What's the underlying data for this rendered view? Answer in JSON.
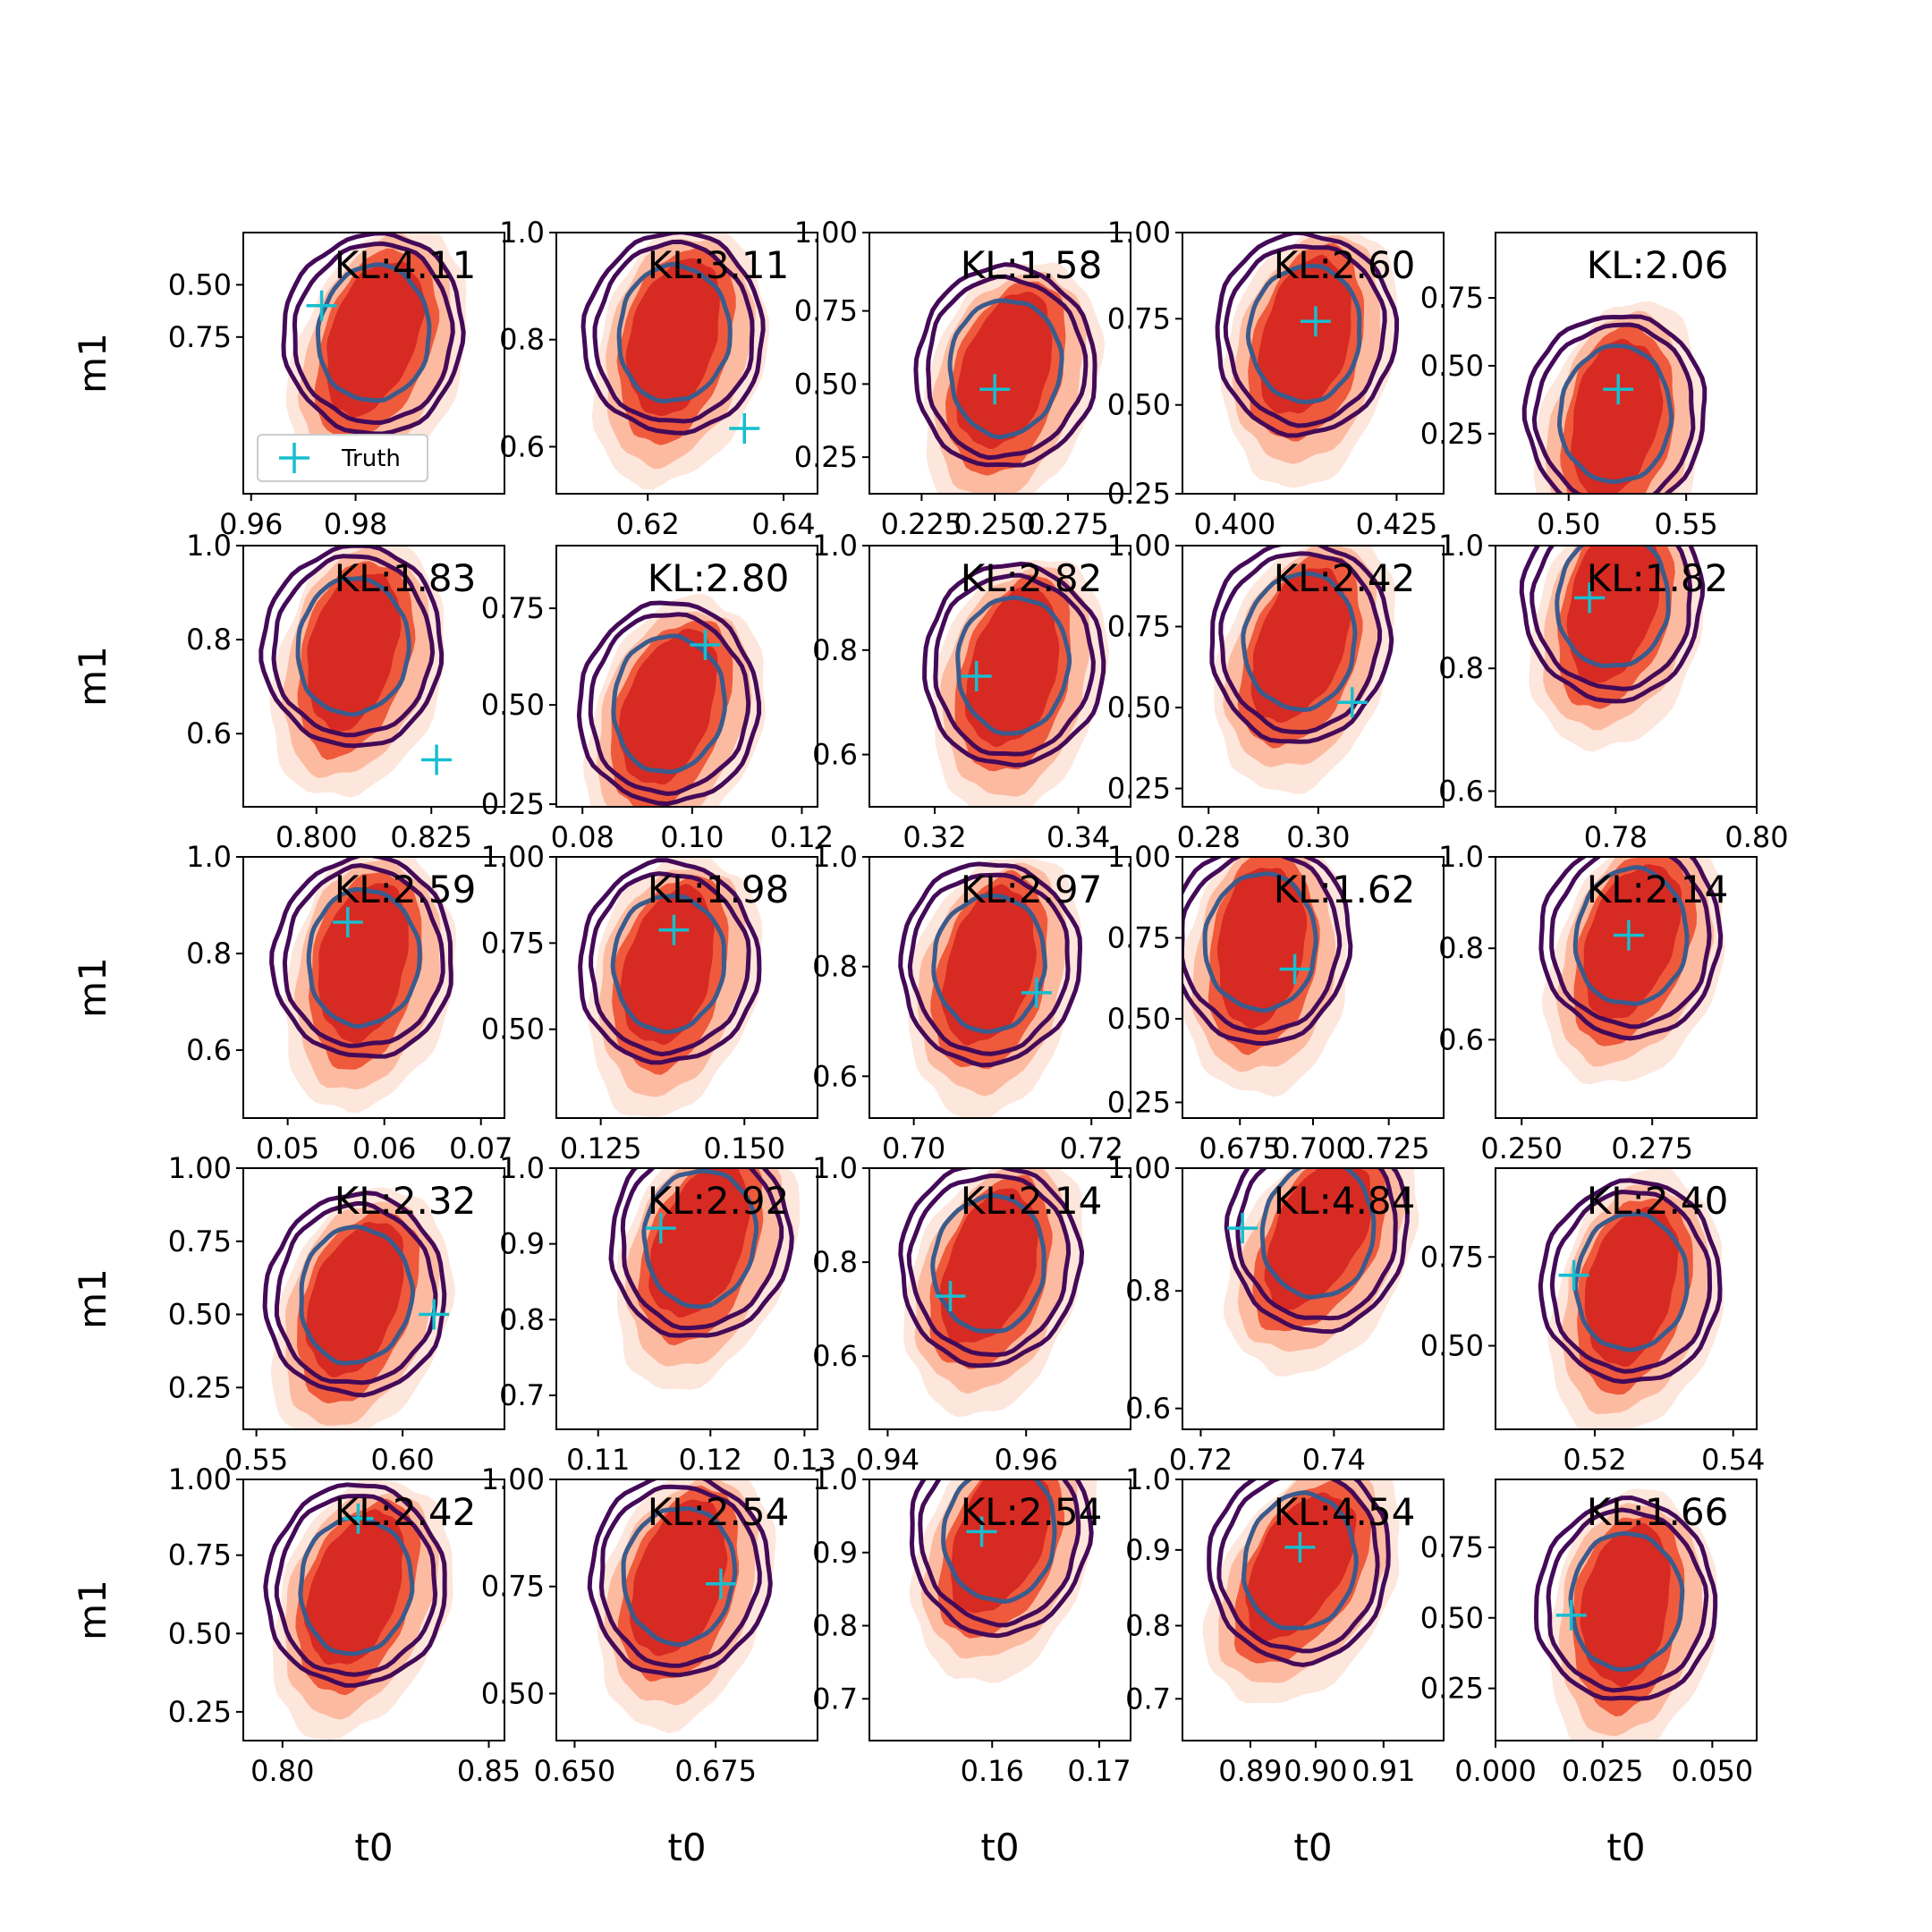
{
  "chart_data": {
    "type": "contour-grid",
    "rows": 5,
    "cols": 5,
    "xlabel": "t0",
    "ylabel": "m1",
    "legend": {
      "label": "Truth",
      "marker": "+",
      "placement": "lower-left of first panel"
    },
    "colors": {
      "fill_outer": "#fde6dc",
      "fill_mid": "#fcbba1",
      "fill_inner1": "#ef5a3c",
      "fill_inner2": "#d72a22",
      "contour_outer": "#440a58",
      "contour_inner": "#3b5b8c",
      "truth": "#17becf"
    },
    "panels": [
      {
        "kl": "KL:4.11",
        "xticks": [
          "0.96",
          "0.98"
        ],
        "yticks": [
          "0.75",
          "0.50"
        ]
      },
      {
        "kl": "KL:3.11",
        "xticks": [
          "0.62",
          "0.64"
        ],
        "yticks": [
          "1.0",
          "0.8",
          "0.6"
        ]
      },
      {
        "kl": "KL:1.58",
        "xticks": [
          "0.225",
          "0.250",
          "0.275"
        ],
        "yticks": [
          "1.00",
          "0.75",
          "0.50",
          "0.25"
        ]
      },
      {
        "kl": "KL:2.60",
        "xticks": [
          "0.400",
          "0.425"
        ],
        "yticks": [
          "1.00",
          "0.75",
          "0.50",
          "0.25"
        ]
      },
      {
        "kl": "KL:2.06",
        "xticks": [
          "0.50",
          "0.55"
        ],
        "yticks": [
          "0.75",
          "0.50",
          "0.25"
        ]
      },
      {
        "kl": "KL:1.83",
        "xticks": [
          "0.800",
          "0.825"
        ],
        "yticks": [
          "1.0",
          "0.8",
          "0.6"
        ]
      },
      {
        "kl": "KL:2.80",
        "xticks": [
          "0.08",
          "0.10",
          "0.12"
        ],
        "yticks": [
          "0.75",
          "0.50",
          "0.25"
        ]
      },
      {
        "kl": "KL:2.82",
        "xticks": [
          "0.32",
          "0.34"
        ],
        "yticks": [
          "1.0",
          "0.8",
          "0.6"
        ]
      },
      {
        "kl": "KL:2.42",
        "xticks": [
          "0.28",
          "0.30"
        ],
        "yticks": [
          "1.00",
          "0.75",
          "0.50",
          "0.25"
        ]
      },
      {
        "kl": "KL:1.82",
        "xticks": [
          "0.78",
          "0.80"
        ],
        "yticks": [
          "1.0",
          "0.8",
          "0.6"
        ]
      },
      {
        "kl": "KL:2.59",
        "xticks": [
          "0.05",
          "0.06",
          "0.07"
        ],
        "yticks": [
          "1.0",
          "0.8",
          "0.6"
        ]
      },
      {
        "kl": "KL:1.98",
        "xticks": [
          "0.125",
          "0.150"
        ],
        "yticks": [
          "1.00",
          "0.75",
          "0.50"
        ]
      },
      {
        "kl": "KL:2.97",
        "xticks": [
          "0.70",
          "0.72"
        ],
        "yticks": [
          "1.0",
          "0.8",
          "0.6"
        ]
      },
      {
        "kl": "KL:1.62",
        "xticks": [
          "0.675",
          "0.700",
          "0.725"
        ],
        "yticks": [
          "1.00",
          "0.75",
          "0.50",
          "0.25"
        ]
      },
      {
        "kl": "KL:2.14",
        "xticks": [
          "0.250",
          "0.275"
        ],
        "yticks": [
          "1.0",
          "0.8",
          "0.6"
        ]
      },
      {
        "kl": "KL:2.32",
        "xticks": [
          "0.55",
          "0.60"
        ],
        "yticks": [
          "1.00",
          "0.75",
          "0.50",
          "0.25"
        ]
      },
      {
        "kl": "KL:2.92",
        "xticks": [
          "0.11",
          "0.12",
          "0.13"
        ],
        "yticks": [
          "1.0",
          "0.9",
          "0.8",
          "0.7"
        ]
      },
      {
        "kl": "KL:2.14",
        "xticks": [
          "0.94",
          "0.96"
        ],
        "yticks": [
          "1.0",
          "0.8",
          "0.6"
        ]
      },
      {
        "kl": "KL:4.84",
        "xticks": [
          "0.72",
          "0.74"
        ],
        "yticks": [
          "1.00",
          "0.8",
          "0.6"
        ]
      },
      {
        "kl": "KL:2.40",
        "xticks": [
          "0.52",
          "0.54"
        ],
        "yticks": [
          "0.75",
          "0.50"
        ]
      },
      {
        "kl": "KL:2.42",
        "xticks": [
          "0.80",
          "0.85"
        ],
        "yticks": [
          "1.00",
          "0.75",
          "0.50",
          "0.25"
        ]
      },
      {
        "kl": "KL:2.54",
        "xticks": [
          "0.650",
          "0.675"
        ],
        "yticks": [
          "1.00",
          "0.75",
          "0.50"
        ]
      },
      {
        "kl": "KL:2.54",
        "xticks": [
          "0.16",
          "0.17"
        ],
        "yticks": [
          "1.0",
          "0.9",
          "0.8",
          "0.7"
        ]
      },
      {
        "kl": "KL:4.54",
        "xticks": [
          "0.89",
          "0.90",
          "0.91"
        ],
        "yticks": [
          "1.0",
          "0.9",
          "0.8",
          "0.7"
        ]
      },
      {
        "kl": "KL:1.66",
        "xticks": [
          "0.000",
          "0.025",
          "0.050"
        ],
        "yticks": [
          "0.75",
          "0.50",
          "0.25"
        ]
      }
    ]
  }
}
